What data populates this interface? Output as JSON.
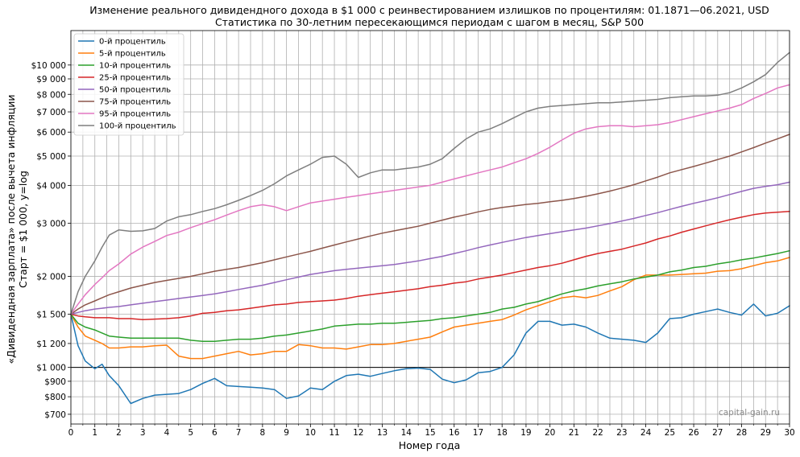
{
  "chart_data": {
    "type": "line",
    "title": "Изменение реального дивидендного дохода в $1 000 с реинвестированием излишков по процентилям: 01.1871—06.2021, USD",
    "subtitle": "Статистика по 30-летним пересекающимся периодам с шагом в месяц, S&P 500",
    "xlabel": "Номер года",
    "ylabel_line1": "«Дивидендная зарплата» после вычета инфляции",
    "ylabel_line2": "Старт = $1 000, y=log",
    "watermark": "capital-gain.ru",
    "y_scale": "log",
    "grid": true,
    "legend_position": "top-left",
    "xlim": [
      0,
      30
    ],
    "ylim": [
      650,
      13000
    ],
    "reference_line": 1000,
    "x_ticks": [
      0,
      1,
      2,
      3,
      4,
      5,
      6,
      7,
      8,
      9,
      10,
      11,
      12,
      13,
      14,
      15,
      16,
      17,
      18,
      19,
      20,
      21,
      22,
      23,
      24,
      25,
      26,
      27,
      28,
      29,
      30
    ],
    "x_tick_labels": [
      "0",
      "1",
      "2",
      "3",
      "4",
      "5",
      "6",
      "7",
      "8",
      "9",
      "10",
      "11",
      "12",
      "13",
      "14",
      "15",
      "16",
      "17",
      "18",
      "19",
      "20",
      "21",
      "22",
      "23",
      "24",
      "25",
      "26",
      "27",
      "28",
      "29",
      "30"
    ],
    "x_minor_ticks": [
      0.5,
      1.5,
      2.5,
      3.5,
      4.5,
      5.5,
      6.5,
      7.5,
      8.5,
      9.5,
      10.5,
      11.5,
      12.5,
      13.5,
      14.5,
      15.5,
      16.5,
      17.5,
      18.5,
      19.5,
      20.5,
      21.5,
      22.5,
      23.5,
      24.5,
      25.5,
      26.5,
      27.5,
      28.5,
      29.5
    ],
    "y_ticks": [
      700,
      800,
      900,
      1000,
      1200,
      1500,
      2000,
      3000,
      4000,
      5000,
      6000,
      7000,
      8000,
      9000,
      10000
    ],
    "y_tick_labels": [
      "$700",
      "$800",
      "$900",
      "$1 000",
      "$1 200",
      "$1 500",
      "$2 000",
      "$3 000",
      "$4 000",
      "$5 000",
      "$6 000",
      "$7 000",
      "$8 000",
      "$9 000",
      "$10 000"
    ],
    "x": [
      0,
      0.3,
      0.6,
      1,
      1.3,
      1.6,
      2,
      2.5,
      3,
      3.5,
      4,
      4.5,
      5,
      5.5,
      6,
      6.5,
      7,
      7.5,
      8,
      8.5,
      9,
      9.5,
      10,
      10.5,
      11,
      11.5,
      12,
      12.5,
      13,
      13.5,
      14,
      14.5,
      15,
      15.5,
      16,
      16.5,
      17,
      17.5,
      18,
      18.5,
      19,
      19.5,
      20,
      20.5,
      21,
      21.5,
      22,
      22.5,
      23,
      23.5,
      24,
      24.5,
      25,
      25.5,
      26,
      26.5,
      27,
      27.5,
      28,
      28.5,
      29,
      29.5,
      30
    ],
    "series": [
      {
        "name": "0-й процентиль",
        "color": "#1f77b4",
        "values": [
          1500,
          1180,
          1050,
          990,
          1025,
          940,
          870,
          760,
          790,
          810,
          815,
          820,
          845,
          885,
          920,
          870,
          865,
          860,
          855,
          845,
          790,
          805,
          855,
          845,
          900,
          940,
          950,
          935,
          955,
          975,
          990,
          995,
          985,
          915,
          890,
          910,
          960,
          970,
          1000,
          1100,
          1300,
          1420,
          1420,
          1380,
          1390,
          1360,
          1300,
          1250,
          1240,
          1230,
          1210,
          1300,
          1450,
          1460,
          1500,
          1530,
          1560,
          1520,
          1490,
          1620,
          1480,
          1510,
          1600
        ]
      },
      {
        "name": "5-й процентиль",
        "color": "#ff7f0e",
        "values": [
          1500,
          1360,
          1270,
          1230,
          1200,
          1160,
          1160,
          1170,
          1170,
          1180,
          1185,
          1090,
          1070,
          1070,
          1090,
          1110,
          1130,
          1100,
          1110,
          1130,
          1130,
          1190,
          1180,
          1160,
          1160,
          1150,
          1170,
          1190,
          1190,
          1200,
          1220,
          1240,
          1260,
          1310,
          1360,
          1380,
          1400,
          1420,
          1440,
          1490,
          1550,
          1600,
          1650,
          1700,
          1720,
          1700,
          1730,
          1790,
          1850,
          1950,
          2020,
          2020,
          2020,
          2030,
          2040,
          2050,
          2080,
          2090,
          2120,
          2170,
          2220,
          2250,
          2310
        ]
      },
      {
        "name": "10-й процентиль",
        "color": "#2ca02c",
        "values": [
          1500,
          1400,
          1360,
          1330,
          1300,
          1270,
          1260,
          1250,
          1250,
          1250,
          1250,
          1250,
          1230,
          1220,
          1220,
          1230,
          1240,
          1240,
          1250,
          1270,
          1280,
          1300,
          1320,
          1340,
          1370,
          1380,
          1390,
          1390,
          1400,
          1400,
          1410,
          1420,
          1430,
          1450,
          1460,
          1480,
          1500,
          1520,
          1560,
          1580,
          1620,
          1650,
          1700,
          1750,
          1790,
          1820,
          1860,
          1890,
          1920,
          1960,
          1990,
          2020,
          2070,
          2100,
          2140,
          2160,
          2200,
          2230,
          2270,
          2300,
          2340,
          2380,
          2430
        ]
      },
      {
        "name": "25-й процентиль",
        "color": "#d62728",
        "values": [
          1500,
          1480,
          1470,
          1460,
          1460,
          1460,
          1450,
          1450,
          1440,
          1445,
          1450,
          1460,
          1480,
          1510,
          1520,
          1540,
          1550,
          1570,
          1590,
          1610,
          1620,
          1640,
          1650,
          1660,
          1670,
          1690,
          1720,
          1740,
          1760,
          1780,
          1800,
          1820,
          1850,
          1870,
          1900,
          1920,
          1960,
          1990,
          2020,
          2060,
          2100,
          2140,
          2170,
          2210,
          2270,
          2330,
          2380,
          2420,
          2460,
          2520,
          2580,
          2660,
          2720,
          2800,
          2870,
          2940,
          3010,
          3080,
          3140,
          3200,
          3240,
          3260,
          3280
        ]
      },
      {
        "name": "50-й процентиль",
        "color": "#9467bd",
        "values": [
          1500,
          1520,
          1540,
          1560,
          1570,
          1580,
          1590,
          1610,
          1630,
          1650,
          1670,
          1690,
          1710,
          1730,
          1750,
          1780,
          1810,
          1840,
          1870,
          1910,
          1950,
          1990,
          2030,
          2060,
          2090,
          2110,
          2130,
          2150,
          2170,
          2190,
          2220,
          2250,
          2290,
          2330,
          2380,
          2430,
          2490,
          2540,
          2590,
          2640,
          2690,
          2730,
          2770,
          2810,
          2850,
          2890,
          2940,
          2990,
          3050,
          3110,
          3180,
          3250,
          3330,
          3410,
          3490,
          3560,
          3640,
          3730,
          3820,
          3910,
          3970,
          4020,
          4100
        ]
      },
      {
        "name": "75-й процентиль",
        "color": "#8c564b",
        "values": [
          1500,
          1560,
          1610,
          1660,
          1700,
          1740,
          1780,
          1830,
          1870,
          1910,
          1940,
          1970,
          2000,
          2040,
          2080,
          2110,
          2140,
          2180,
          2220,
          2270,
          2320,
          2370,
          2420,
          2480,
          2540,
          2600,
          2660,
          2720,
          2780,
          2830,
          2880,
          2930,
          3000,
          3070,
          3140,
          3200,
          3270,
          3330,
          3380,
          3420,
          3460,
          3490,
          3530,
          3570,
          3620,
          3680,
          3750,
          3830,
          3920,
          4020,
          4140,
          4260,
          4400,
          4510,
          4620,
          4740,
          4870,
          5000,
          5160,
          5330,
          5520,
          5700,
          5900
        ]
      },
      {
        "name": "95-й процентиль",
        "color": "#e377c2",
        "values": [
          1500,
          1620,
          1740,
          1880,
          1980,
          2090,
          2200,
          2370,
          2500,
          2610,
          2730,
          2800,
          2900,
          2990,
          3080,
          3190,
          3300,
          3400,
          3450,
          3400,
          3300,
          3400,
          3500,
          3550,
          3600,
          3650,
          3700,
          3750,
          3800,
          3850,
          3900,
          3950,
          4000,
          4100,
          4200,
          4300,
          4400,
          4500,
          4600,
          4750,
          4900,
          5100,
          5350,
          5650,
          5950,
          6150,
          6250,
          6300,
          6300,
          6250,
          6300,
          6350,
          6450,
          6600,
          6750,
          6900,
          7050,
          7200,
          7400,
          7750,
          8050,
          8400,
          8600
        ]
      },
      {
        "name": "100-й процентиль",
        "color": "#7f7f7f",
        "values": [
          1500,
          1780,
          2000,
          2250,
          2500,
          2740,
          2850,
          2820,
          2830,
          2880,
          3050,
          3150,
          3200,
          3280,
          3350,
          3450,
          3570,
          3700,
          3850,
          4050,
          4300,
          4500,
          4700,
          4950,
          5000,
          4700,
          4250,
          4400,
          4500,
          4500,
          4550,
          4600,
          4700,
          4900,
          5300,
          5700,
          6000,
          6150,
          6400,
          6700,
          7000,
          7200,
          7300,
          7350,
          7400,
          7450,
          7500,
          7500,
          7550,
          7600,
          7650,
          7700,
          7800,
          7850,
          7900,
          7900,
          7950,
          8100,
          8400,
          8800,
          9300,
          10200,
          11000
        ]
      }
    ]
  }
}
